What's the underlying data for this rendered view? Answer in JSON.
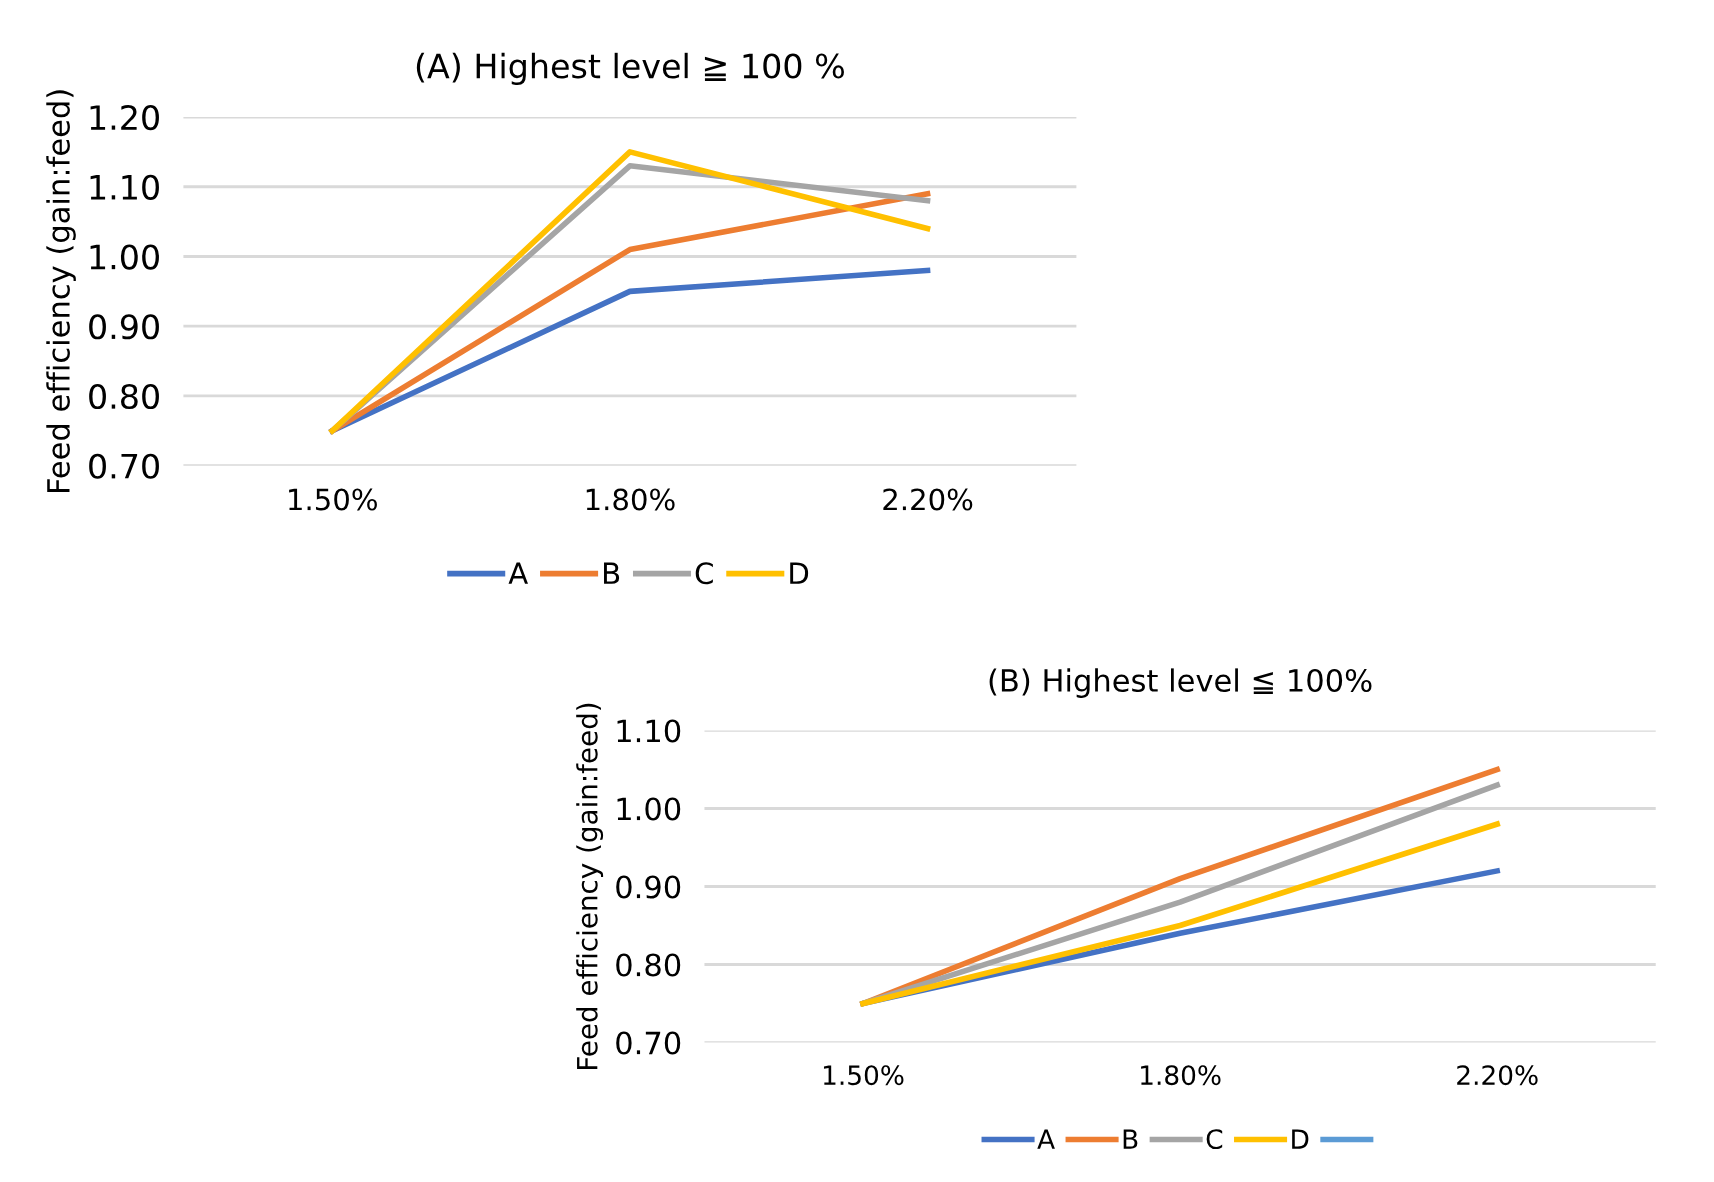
{
  "chart_data": [
    {
      "type": "line",
      "title": "(A) Highest level ≧ 100 %",
      "ylabel": "Feed efficiency (gain:feed)",
      "categories": [
        "1.50%",
        "1.80%",
        "2.20%"
      ],
      "series": [
        {
          "name": "A",
          "color": "#4472c4",
          "values": [
            0.75,
            0.95,
            0.98
          ]
        },
        {
          "name": "B",
          "color": "#ed7d31",
          "values": [
            0.75,
            1.01,
            1.09
          ]
        },
        {
          "name": "C",
          "color": "#a5a5a5",
          "values": [
            0.75,
            1.13,
            1.08
          ]
        },
        {
          "name": "D",
          "color": "#ffc000",
          "values": [
            0.75,
            1.15,
            1.04
          ]
        }
      ],
      "ylim": [
        0.7,
        1.2
      ],
      "yticks": [
        {
          "value": 0.7,
          "label": "0.70"
        },
        {
          "value": 0.8,
          "label": "0.80"
        },
        {
          "value": 0.9,
          "label": "0.90"
        },
        {
          "value": 1.0,
          "label": "1.00"
        },
        {
          "value": 1.1,
          "label": "1.10"
        },
        {
          "value": 1.2,
          "label": "1.20"
        }
      ],
      "grid": "y",
      "legend": "bottom",
      "marker": "none",
      "line_style": "solid"
    },
    {
      "type": "line",
      "title": "(B) Highest level ≦ 100%",
      "ylabel": "Feed efficiency (gain:feed)",
      "categories": [
        "1.50%",
        "1.80%",
        "2.20%"
      ],
      "series": [
        {
          "name": "A",
          "color": "#4472c4",
          "values": [
            0.75,
            0.84,
            0.92
          ]
        },
        {
          "name": "B",
          "color": "#ed7d31",
          "values": [
            0.75,
            0.91,
            1.05
          ]
        },
        {
          "name": "C",
          "color": "#a5a5a5",
          "values": [
            0.75,
            0.88,
            1.03
          ]
        },
        {
          "name": "D",
          "color": "#ffc000",
          "values": [
            0.75,
            0.85,
            0.98
          ]
        },
        {
          "color": "#5b9bd5",
          "values": [
            null,
            null,
            null
          ]
        }
      ],
      "ylim": [
        0.7,
        1.1
      ],
      "yticks": [
        {
          "value": 0.7,
          "label": "0.70"
        },
        {
          "value": 0.8,
          "label": "0.80"
        },
        {
          "value": 0.9,
          "label": "0.90"
        },
        {
          "value": 1.0,
          "label": "1.00"
        },
        {
          "value": 1.1,
          "label": "1.10"
        }
      ],
      "grid": "y",
      "legend": "bottom",
      "marker": "none",
      "line_style": "solid"
    }
  ]
}
